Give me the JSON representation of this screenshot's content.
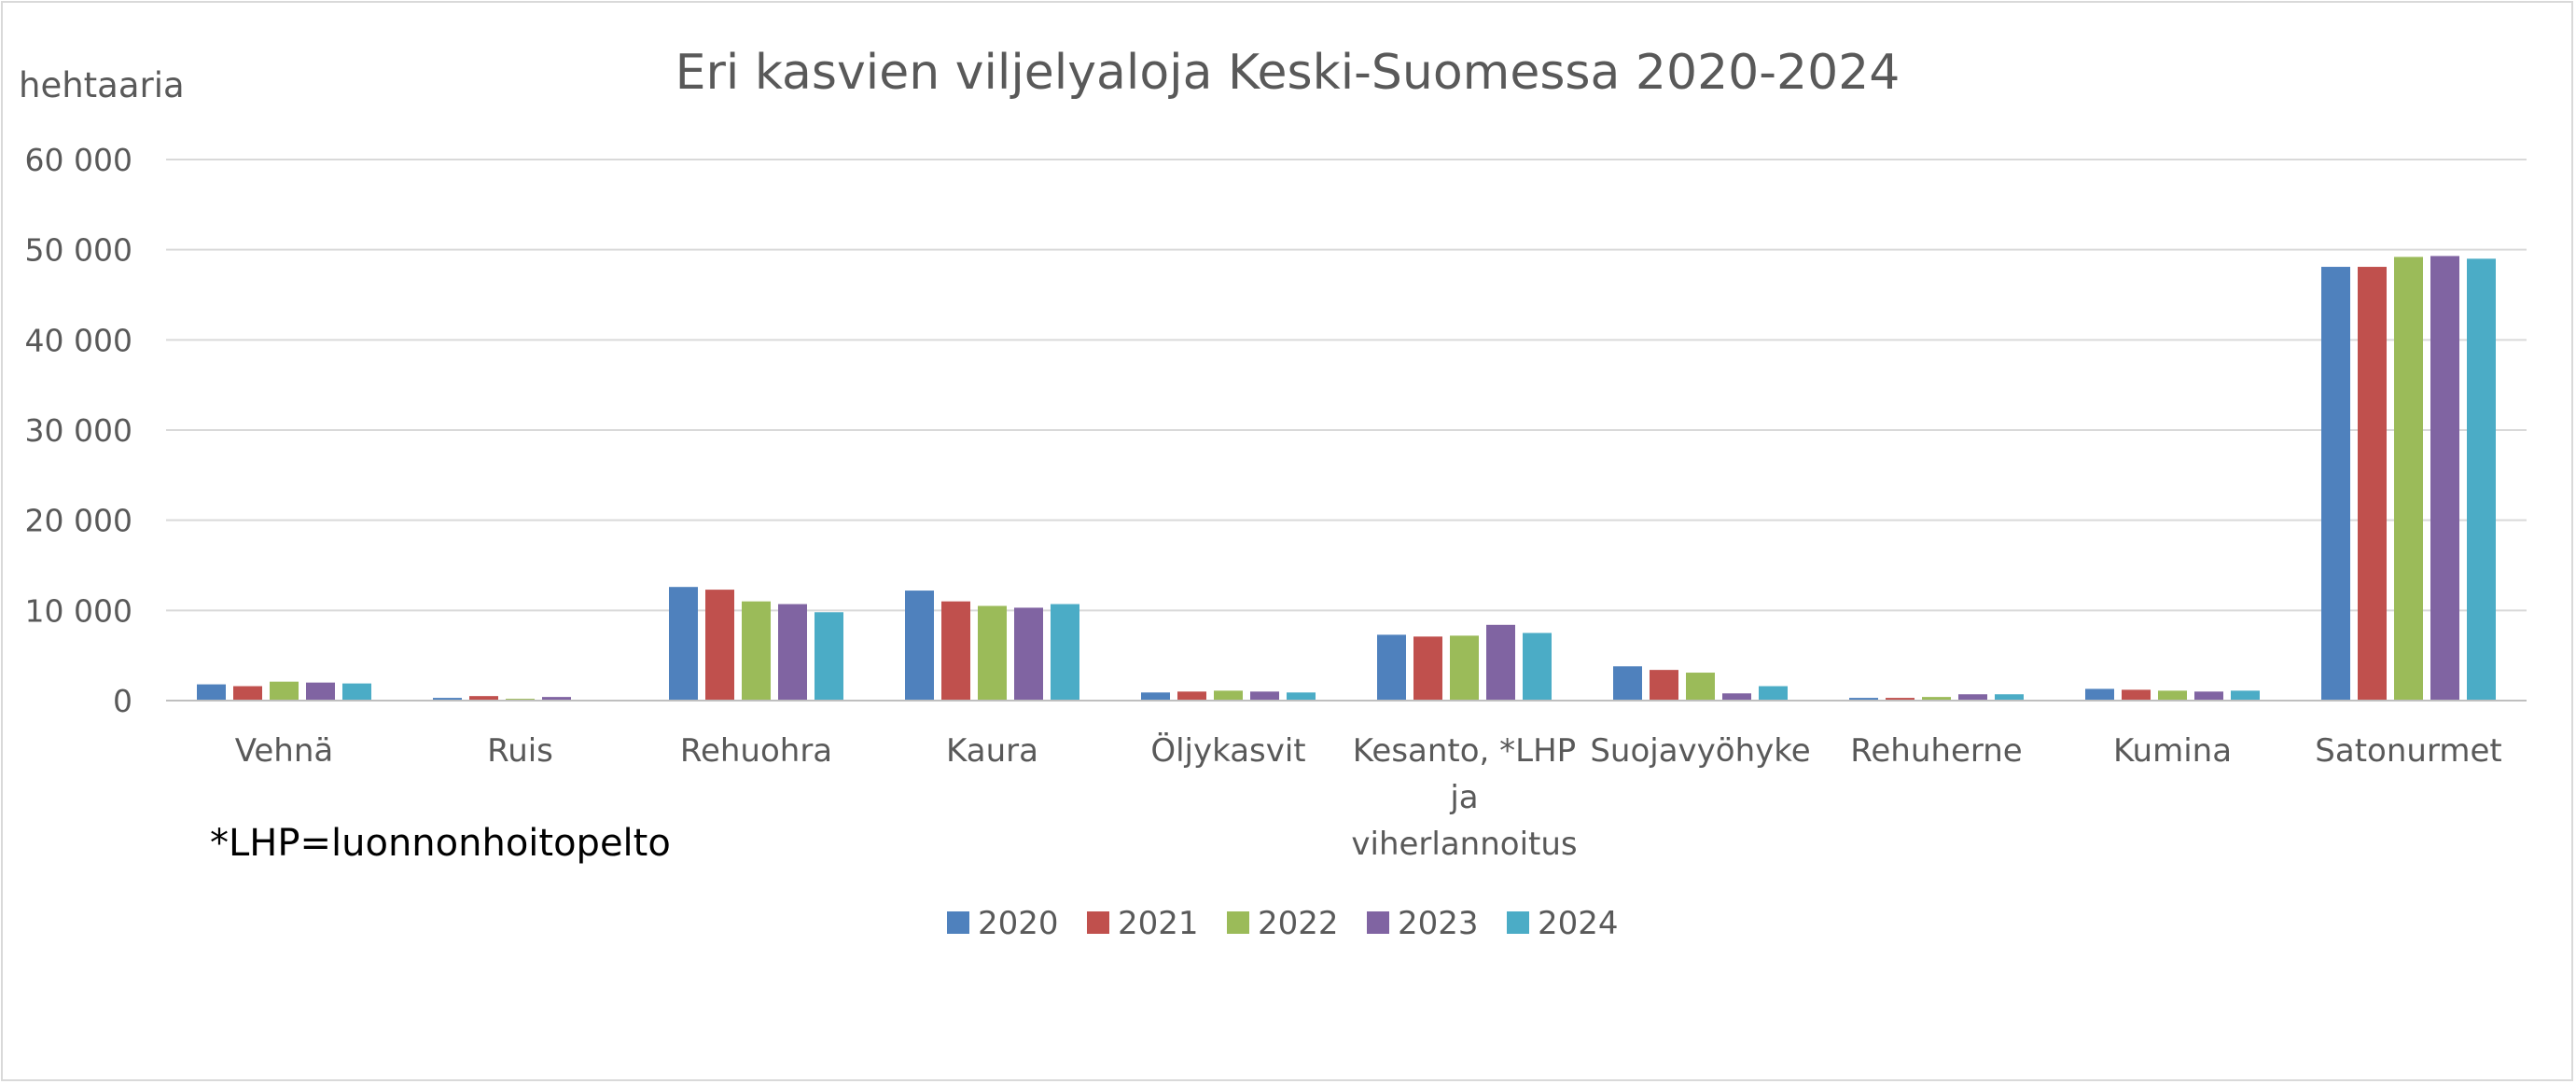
{
  "chart_data": {
    "type": "bar",
    "title": "Eri kasvien viljelyaloja Keski-Suomessa 2020-2024",
    "ylabel": "hehtaaria",
    "ylim": [
      0,
      60000
    ],
    "yticks": [
      "0",
      "10 000",
      "20 000",
      "30 000",
      "40 000",
      "50 000",
      "60 000"
    ],
    "grid": true,
    "legend_position": "bottom",
    "categories": [
      "Vehnä",
      "Ruis",
      "Rehuohra",
      "Kaura",
      "Öljykasvit",
      "Kesanto, *LHP ja viherlannoitus",
      "Suojavyöhyke",
      "Rehuherne",
      "Kumina",
      "Satonurmet"
    ],
    "category_label_lines": [
      [
        "Vehnä"
      ],
      [
        "Ruis"
      ],
      [
        "Rehuohra"
      ],
      [
        "Kaura"
      ],
      [
        "Öljykasvit"
      ],
      [
        "Kesanto, *LHP",
        "ja",
        "viherlannoitus"
      ],
      [
        "Suojavyöhyke"
      ],
      [
        "Rehuherne"
      ],
      [
        "Kumina"
      ],
      [
        "Satonurmet"
      ]
    ],
    "series": [
      {
        "name": "2020",
        "color": "#4f81bd",
        "values": [
          1800,
          300,
          12600,
          12200,
          900,
          7300,
          3800,
          300,
          1300,
          48100
        ]
      },
      {
        "name": "2021",
        "color": "#c0504d",
        "values": [
          1600,
          500,
          12300,
          11000,
          1000,
          7100,
          3400,
          300,
          1200,
          48100
        ]
      },
      {
        "name": "2022",
        "color": "#9bbb59",
        "values": [
          2100,
          200,
          11000,
          10500,
          1100,
          7200,
          3100,
          400,
          1100,
          49200
        ]
      },
      {
        "name": "2023",
        "color": "#8064a2",
        "values": [
          2000,
          400,
          10700,
          10300,
          1000,
          8400,
          800,
          700,
          1000,
          49300
        ]
      },
      {
        "name": "2024",
        "color": "#4bacc6",
        "values": [
          1900,
          100,
          9800,
          10700,
          900,
          7500,
          1600,
          700,
          1100,
          49000
        ]
      }
    ],
    "footnote": "*LHP=luonnonhoitopelto"
  }
}
